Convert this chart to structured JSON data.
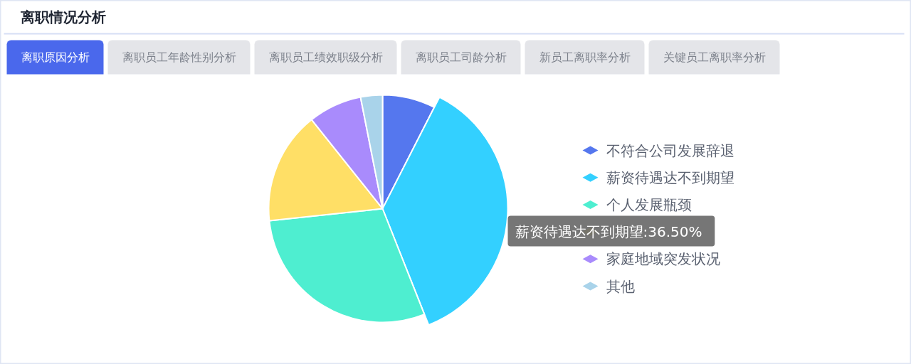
{
  "chart_data": {
    "type": "pie",
    "title": "离职情况分析",
    "subtitle": "离职原因分析",
    "categories": [
      "不符合公司发展辞退",
      "薪资待遇达不到期望",
      "个人发展瓶颈",
      null,
      "家庭地域突发状况",
      "其他"
    ],
    "values": [
      7.5,
      36.5,
      29.3,
      16.0,
      7.6,
      3.1
    ],
    "colors": [
      "#5577ee",
      "#33d0ff",
      "#4eeed0",
      "#ffdf66",
      "#a98bfc",
      "#a9d3ea"
    ],
    "legend": "right",
    "annotations": [
      "离职员工年龄性别分析",
      "离职员工绩效职级分析",
      "离职员工司龄分析",
      "新员工离职率分析",
      "关键员工离职率分析",
      {
        "text": "薪资待遇达不到期望:36.50%",
        "x": "薪资待遇达不到期望"
      }
    ]
  }
}
